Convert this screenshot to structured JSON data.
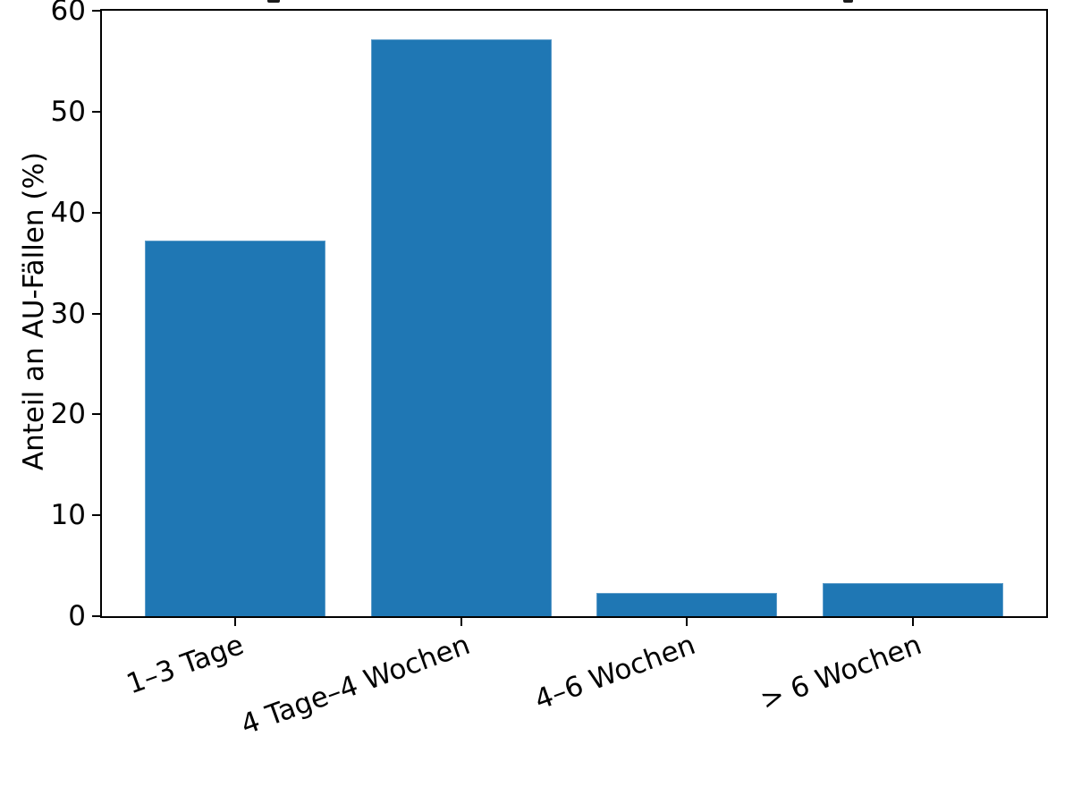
{
  "figure": {
    "background": "#ffffff"
  },
  "chart_data": {
    "type": "bar",
    "title": "",
    "categories": [
      "1–3 Tage",
      "4 Tage–4 Wochen",
      "4–6 Wochen",
      "> 6 Wochen"
    ],
    "values": [
      37.2,
      57.2,
      2.3,
      3.3
    ],
    "xlabel": "",
    "ylabel": "Anteil an AU-Fällen (%)",
    "ylim": [
      0,
      60
    ],
    "yticks": [
      0,
      10,
      20,
      30,
      40,
      50,
      60
    ],
    "bar_color": "#1f77b4",
    "axis_color": "#000000",
    "grid": false,
    "legend_position": "none",
    "x_tick_rotation_deg": 20
  }
}
